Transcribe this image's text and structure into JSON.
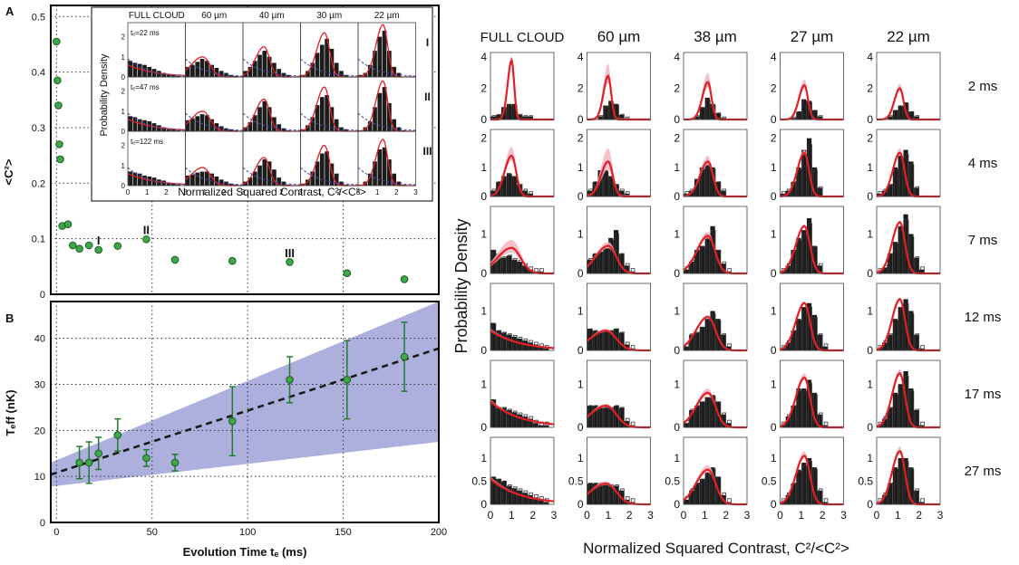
{
  "colors": {
    "point_fill": "#3fa64a",
    "point_stroke": "#1d5e24",
    "errorbar": "#237a31",
    "band": "#9fa2d6",
    "fit_line": "#1a1a1a",
    "model_red": "#e41e26",
    "model_band": "#f2b6c2",
    "hist_fill": "#1c1c1c",
    "hist_outline": "#333333",
    "gaussian_dash": "#4a4aa8"
  },
  "chart_data": [
    {
      "id": "A",
      "type": "scatter",
      "panel_label": "A",
      "ylabel": "<C²>",
      "xlim": [
        -3,
        200
      ],
      "ylim": [
        0,
        0.52
      ],
      "x_ticks": [
        0,
        50,
        100,
        150,
        200
      ],
      "y_ticks": [
        0,
        0.1,
        0.2,
        0.3,
        0.4,
        0.5
      ],
      "y_tick_labels": [
        "0",
        "0.1",
        "0.2",
        "0.3",
        "0.4",
        "0.5"
      ],
      "grid": true,
      "points": [
        {
          "x": 0,
          "y": 0.455
        },
        {
          "x": 0.5,
          "y": 0.385
        },
        {
          "x": 1,
          "y": 0.34
        },
        {
          "x": 1.5,
          "y": 0.27
        },
        {
          "x": 2,
          "y": 0.243
        },
        {
          "x": 3,
          "y": 0.123
        },
        {
          "x": 6,
          "y": 0.126
        },
        {
          "x": 8.5,
          "y": 0.088
        },
        {
          "x": 12,
          "y": 0.082
        },
        {
          "x": 17,
          "y": 0.088
        },
        {
          "x": 22,
          "y": 0.08
        },
        {
          "x": 32,
          "y": 0.087
        },
        {
          "x": 47,
          "y": 0.099
        },
        {
          "x": 62,
          "y": 0.062
        },
        {
          "x": 92,
          "y": 0.06
        },
        {
          "x": 122,
          "y": 0.058
        },
        {
          "x": 152,
          "y": 0.038
        },
        {
          "x": 182,
          "y": 0.027
        }
      ],
      "annotations": [
        {
          "text": "I",
          "x": 22,
          "y": 0.09
        },
        {
          "text": "II",
          "x": 47,
          "y": 0.108
        },
        {
          "text": "III",
          "x": 122,
          "y": 0.067
        }
      ]
    },
    {
      "id": "A_inset",
      "type": "bar",
      "column_titles": [
        "FULL CLOUD",
        "60 µm",
        "40 µm",
        "30 µm",
        "22 µm"
      ],
      "row_labels": [
        "I",
        "II",
        "III"
      ],
      "row_times": [
        "tₑ=22 ms",
        "tₑ=47 ms",
        "tₑ=122 ms"
      ],
      "ylabel": "Probability Density",
      "xlabel": "Normalized Squared Contrast, C²/<C²>",
      "x_ticks": [
        0,
        1,
        2,
        3
      ],
      "y_ticks": [
        0,
        1,
        2
      ],
      "y_tick_labels": [
        "0",
        "1",
        "2"
      ],
      "ylim": [
        0,
        2.7
      ],
      "bins_x_edges": [
        0,
        0.25,
        0.5,
        0.75,
        1.0,
        1.25,
        1.5,
        1.75,
        2.0,
        2.25,
        2.5,
        2.75,
        3.0
      ],
      "histograms": [
        [
          [
            0.8,
            0.7,
            0.65,
            0.6,
            0.5,
            0.4,
            0.3,
            0.2,
            0.15,
            0.1,
            0.05,
            0.0
          ],
          [
            0.5,
            0.6,
            0.75,
            0.9,
            0.8,
            0.6,
            0.45,
            0.3,
            0.2,
            0.1,
            0.05,
            0.0
          ],
          [
            0.3,
            0.5,
            0.8,
            1.1,
            1.3,
            1.0,
            0.7,
            0.4,
            0.2,
            0.1,
            0.0,
            0.0
          ],
          [
            0.1,
            0.3,
            0.7,
            1.2,
            1.6,
            1.9,
            1.4,
            0.7,
            0.3,
            0.1,
            0.0,
            0.0
          ],
          [
            0.1,
            0.2,
            0.6,
            1.3,
            2.0,
            2.3,
            1.3,
            0.5,
            0.2,
            0.0,
            0.0,
            0.0
          ]
        ],
        [
          [
            0.75,
            0.7,
            0.6,
            0.55,
            0.5,
            0.4,
            0.3,
            0.2,
            0.1,
            0.1,
            0.05,
            0.0
          ],
          [
            0.55,
            0.65,
            0.75,
            0.85,
            0.8,
            0.6,
            0.4,
            0.25,
            0.15,
            0.1,
            0.05,
            0.0
          ],
          [
            0.2,
            0.45,
            0.8,
            1.2,
            1.5,
            1.2,
            0.7,
            0.35,
            0.15,
            0.05,
            0.0,
            0.0
          ],
          [
            0.1,
            0.3,
            0.7,
            1.3,
            1.7,
            1.8,
            1.2,
            0.6,
            0.2,
            0.1,
            0.0,
            0.0
          ],
          [
            0.05,
            0.2,
            0.5,
            1.2,
            1.9,
            2.2,
            1.4,
            0.6,
            0.2,
            0.05,
            0.0,
            0.0
          ]
        ],
        [
          [
            0.7,
            0.65,
            0.6,
            0.5,
            0.45,
            0.4,
            0.3,
            0.25,
            0.15,
            0.1,
            0.05,
            0.0
          ],
          [
            0.5,
            0.55,
            0.65,
            0.7,
            0.7,
            0.6,
            0.45,
            0.3,
            0.2,
            0.1,
            0.05,
            0.0
          ],
          [
            0.2,
            0.4,
            0.7,
            1.0,
            1.3,
            1.2,
            0.8,
            0.4,
            0.2,
            0.05,
            0.0,
            0.0
          ],
          [
            0.1,
            0.3,
            0.7,
            1.2,
            1.6,
            1.7,
            1.1,
            0.6,
            0.2,
            0.05,
            0.0,
            0.0
          ],
          [
            0.05,
            0.2,
            0.6,
            1.2,
            1.8,
            1.9,
            1.3,
            0.6,
            0.2,
            0.05,
            0.0,
            0.0
          ]
        ]
      ],
      "model_peaks": [
        [
          0.6,
          1.0,
          1.5,
          2.2,
          2.6
        ],
        [
          0.6,
          1.0,
          1.6,
          2.2,
          2.5
        ],
        [
          0.6,
          0.9,
          1.4,
          2.0,
          2.3
        ]
      ]
    },
    {
      "id": "B",
      "type": "scatter",
      "panel_label": "B",
      "xlabel": "Evolution Time tₑ (ms)",
      "ylabel": "Tₑff (nK)",
      "xlim": [
        -3,
        200
      ],
      "ylim": [
        0,
        48
      ],
      "x_ticks": [
        0,
        50,
        100,
        150,
        200
      ],
      "y_ticks": [
        0,
        10,
        20,
        30,
        40
      ],
      "grid": true,
      "points": [
        {
          "x": 12,
          "y": 13,
          "err": 3.5
        },
        {
          "x": 17,
          "y": 13,
          "err": 4.5
        },
        {
          "x": 22,
          "y": 15,
          "err": 3.5
        },
        {
          "x": 32,
          "y": 19,
          "err": 3.5
        },
        {
          "x": 47,
          "y": 14,
          "err": 1.8
        },
        {
          "x": 62,
          "y": 13,
          "err": 1.8
        },
        {
          "x": 92,
          "y": 22,
          "err": 7.5
        },
        {
          "x": 122,
          "y": 31,
          "err": 5
        },
        {
          "x": 152,
          "y": 31,
          "err": 8.5
        },
        {
          "x": 182,
          "y": 36,
          "err": 7.5
        }
      ],
      "fit_line": {
        "x": [
          -3,
          200
        ],
        "y": [
          10.4,
          37.8
        ]
      },
      "band": {
        "x": [
          -3,
          200
        ],
        "lower": [
          7.8,
          17.5
        ],
        "upper": [
          13.0,
          48
        ]
      }
    },
    {
      "id": "C",
      "type": "bar",
      "column_titles": [
        "FULL CLOUD",
        "60 µm",
        "38 µm",
        "27 µm",
        "22 µm"
      ],
      "row_labels": [
        "2 ms",
        "4 ms",
        "7 ms",
        "12 ms",
        "17 ms",
        "27 ms"
      ],
      "ylabel": "Probability Density",
      "xlabel": "Normalized Squared Contrast, C²/<C²>",
      "x_ticks": [
        0,
        1,
        2,
        3
      ],
      "row_y_ticks": [
        [
          0,
          2,
          4
        ],
        [
          0,
          1,
          2
        ],
        [
          0,
          1
        ],
        [
          0,
          1
        ],
        [
          0,
          1
        ],
        [
          0,
          0.5,
          1
        ]
      ],
      "row_y_tick_labels": [
        [
          "0",
          "2",
          "4"
        ],
        [
          "0",
          "1",
          "2"
        ],
        [
          "0",
          "1"
        ],
        [
          "0",
          "1"
        ],
        [
          "0",
          "1"
        ],
        [
          "0",
          "0.5",
          "1"
        ]
      ],
      "row_ylim": [
        4.3,
        2.3,
        1.7,
        1.7,
        1.55,
        1.45
      ],
      "bins_x_edges": [
        0,
        0.25,
        0.5,
        0.75,
        1.0,
        1.25,
        1.5,
        1.75,
        2.0,
        2.25,
        2.5,
        2.75,
        3.0
      ],
      "histograms": [
        [
          [
            0.2,
            0.3,
            0.8,
            1.0,
            1.0,
            0.3,
            0.2,
            0.2,
            0,
            0,
            0,
            0
          ],
          [
            0,
            0,
            0.2,
            0.9,
            1.2,
            1.0,
            0.3,
            0.1,
            0,
            0,
            0,
            0
          ],
          [
            0,
            0,
            0.2,
            0.8,
            1.4,
            1.0,
            0.4,
            0.1,
            0,
            0,
            0,
            0
          ],
          [
            0,
            0,
            0.1,
            0.5,
            1.3,
            1.2,
            0.6,
            0.2,
            0,
            0,
            0,
            0
          ],
          [
            0,
            0,
            0.2,
            0.6,
            0.9,
            1.1,
            0.5,
            0.2,
            0,
            0,
            0,
            0
          ]
        ],
        [
          [
            0.2,
            0.5,
            0.7,
            0.8,
            0.7,
            0.4,
            0.2,
            0.1,
            0,
            0,
            0,
            0
          ],
          [
            0.2,
            0.5,
            0.9,
            0.9,
            0.7,
            0.4,
            0.2,
            0.1,
            0,
            0,
            0,
            0
          ],
          [
            0.1,
            0.2,
            0.6,
            1.0,
            1.2,
            1.0,
            0.5,
            0.2,
            0,
            0,
            0,
            0
          ],
          [
            0.1,
            0.2,
            0.5,
            1.0,
            1.6,
            2.0,
            1.0,
            0.3,
            0,
            0,
            0,
            0
          ],
          [
            0.1,
            0.2,
            0.4,
            1.0,
            1.4,
            1.6,
            1.2,
            0.3,
            0,
            0,
            0,
            0
          ]
        ],
        [
          [
            0.6,
            0.5,
            0.4,
            0.45,
            0.35,
            0.3,
            0.2,
            0.1,
            0.05,
            0.05,
            0,
            0
          ],
          [
            0.35,
            0.5,
            0.55,
            0.65,
            0.9,
            1.1,
            0.5,
            0.2,
            0.05,
            0,
            0,
            0
          ],
          [
            0.1,
            0.3,
            0.6,
            0.7,
            1.0,
            1.2,
            0.6,
            0.25,
            0.05,
            0,
            0,
            0
          ],
          [
            0.05,
            0.2,
            0.6,
            0.9,
            1.1,
            1.4,
            0.7,
            0.2,
            0,
            0,
            0,
            0
          ],
          [
            0.05,
            0.15,
            0.5,
            0.8,
            1.2,
            1.5,
            1.0,
            0.4,
            0.1,
            0,
            0,
            0
          ]
        ],
        [
          [
            0.7,
            0.5,
            0.45,
            0.4,
            0.35,
            0.3,
            0.25,
            0.2,
            0.15,
            0.1,
            0.05,
            0
          ],
          [
            0.55,
            0.5,
            0.45,
            0.5,
            0.5,
            0.55,
            0.45,
            0.15,
            0.05,
            0,
            0,
            0
          ],
          [
            0.1,
            0.4,
            0.45,
            0.6,
            0.8,
            1.0,
            0.8,
            0.4,
            0.1,
            0,
            0,
            0
          ],
          [
            0.05,
            0.2,
            0.5,
            0.8,
            1.1,
            1.2,
            0.9,
            0.4,
            0.1,
            0,
            0,
            0
          ],
          [
            0.05,
            0.2,
            0.4,
            0.8,
            1.1,
            1.3,
            1.0,
            0.4,
            0.05,
            0,
            0,
            0
          ]
        ],
        [
          [
            0.65,
            0.45,
            0.45,
            0.4,
            0.35,
            0.3,
            0.25,
            0.2,
            0.1,
            0.05,
            0.05,
            0
          ],
          [
            0.5,
            0.5,
            0.45,
            0.45,
            0.45,
            0.5,
            0.45,
            0.15,
            0.05,
            0,
            0,
            0
          ],
          [
            0.1,
            0.4,
            0.5,
            0.6,
            0.7,
            0.75,
            0.6,
            0.3,
            0.1,
            0,
            0,
            0
          ],
          [
            0.05,
            0.25,
            0.5,
            0.9,
            0.9,
            1.1,
            0.8,
            0.3,
            0.05,
            0,
            0,
            0
          ],
          [
            0.05,
            0.2,
            0.45,
            0.8,
            1.0,
            1.3,
            0.9,
            0.4,
            0.05,
            0,
            0,
            0
          ]
        ],
        [
          [
            0.6,
            0.55,
            0.5,
            0.4,
            0.35,
            0.3,
            0.25,
            0.2,
            0.15,
            0.1,
            0.05,
            0
          ],
          [
            0.45,
            0.45,
            0.45,
            0.45,
            0.4,
            0.4,
            0.3,
            0.1,
            0.05,
            0,
            0,
            0
          ],
          [
            0.1,
            0.3,
            0.45,
            0.55,
            0.7,
            0.8,
            0.6,
            0.2,
            0.05,
            0,
            0,
            0
          ],
          [
            0.05,
            0.2,
            0.45,
            0.75,
            0.9,
            1.0,
            0.8,
            0.3,
            0.05,
            0,
            0,
            0
          ],
          [
            0.05,
            0.2,
            0.45,
            0.8,
            1.0,
            1.0,
            0.8,
            0.3,
            0.05,
            0,
            0,
            0
          ]
        ]
      ],
      "model_peaks": [
        [
          3.8,
          2.8,
          2.4,
          2.2,
          2.0
        ],
        [
          1.4,
          1.2,
          1.2,
          1.5,
          1.5
        ],
        [
          0.65,
          0.7,
          0.95,
          1.2,
          1.3
        ],
        [
          0.5,
          0.5,
          0.85,
          1.2,
          1.3
        ],
        [
          0.6,
          0.5,
          0.8,
          1.15,
          1.25
        ],
        [
          0.55,
          0.45,
          0.75,
          1.05,
          1.15
        ]
      ],
      "model_band_extra": [
        [
          0.3,
          0.8,
          0.6,
          0.4,
          0.3
        ],
        [
          0.3,
          0.45,
          0.2,
          0.1,
          0.15
        ],
        [
          0.2,
          0.1,
          0.1,
          0.05,
          0.05
        ],
        [
          0.05,
          0.05,
          0.05,
          0.05,
          0.05
        ],
        [
          0.05,
          0.05,
          0.1,
          0.1,
          0.1
        ],
        [
          0.05,
          0.05,
          0.1,
          0.1,
          0.1
        ]
      ]
    }
  ]
}
